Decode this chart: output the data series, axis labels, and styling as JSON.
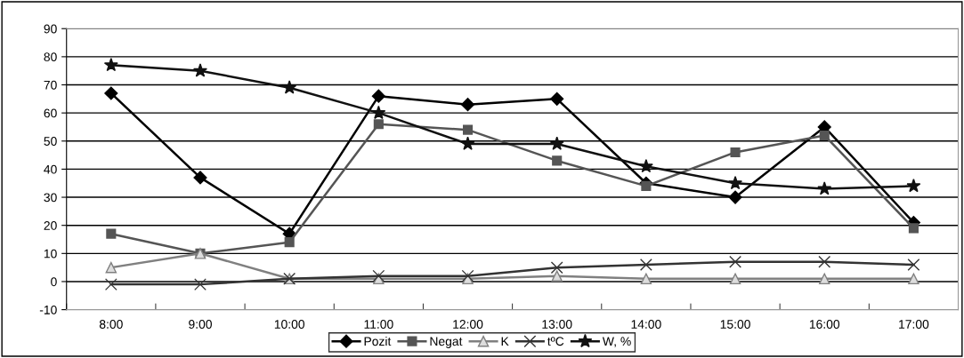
{
  "chart_data": {
    "type": "line",
    "categories": [
      "8:00",
      "9:00",
      "10:00",
      "11:00",
      "12:00",
      "13:00",
      "14:00",
      "15:00",
      "16:00",
      "17:00"
    ],
    "series": [
      {
        "name": "Pozit",
        "color": "#000000",
        "marker": "diamond",
        "values": [
          67,
          37,
          17,
          66,
          63,
          65,
          35,
          30,
          55,
          21
        ]
      },
      {
        "name": "Negat",
        "color": "#555555",
        "marker": "square",
        "values": [
          17,
          10,
          14,
          56,
          54,
          43,
          34,
          46,
          52,
          19
        ]
      },
      {
        "name": "K",
        "color": "#808080",
        "marker": "triangle",
        "values": [
          5,
          10,
          1,
          1,
          1,
          2,
          1,
          1,
          1,
          1
        ]
      },
      {
        "name": "tºC",
        "color": "#333333",
        "marker": "cross",
        "values": [
          -1,
          -1,
          1,
          2,
          2,
          5,
          6,
          7,
          7,
          6
        ]
      },
      {
        "name": "W, %",
        "color": "#111111",
        "marker": "star",
        "values": [
          77,
          75,
          69,
          60,
          49,
          49,
          41,
          35,
          33,
          34
        ]
      }
    ],
    "ylim": [
      -10,
      90
    ],
    "yticks": [
      -10,
      0,
      10,
      20,
      30,
      40,
      50,
      60,
      70,
      80,
      90
    ],
    "grid": "y",
    "legend": "bottom",
    "line_style": "solid"
  }
}
